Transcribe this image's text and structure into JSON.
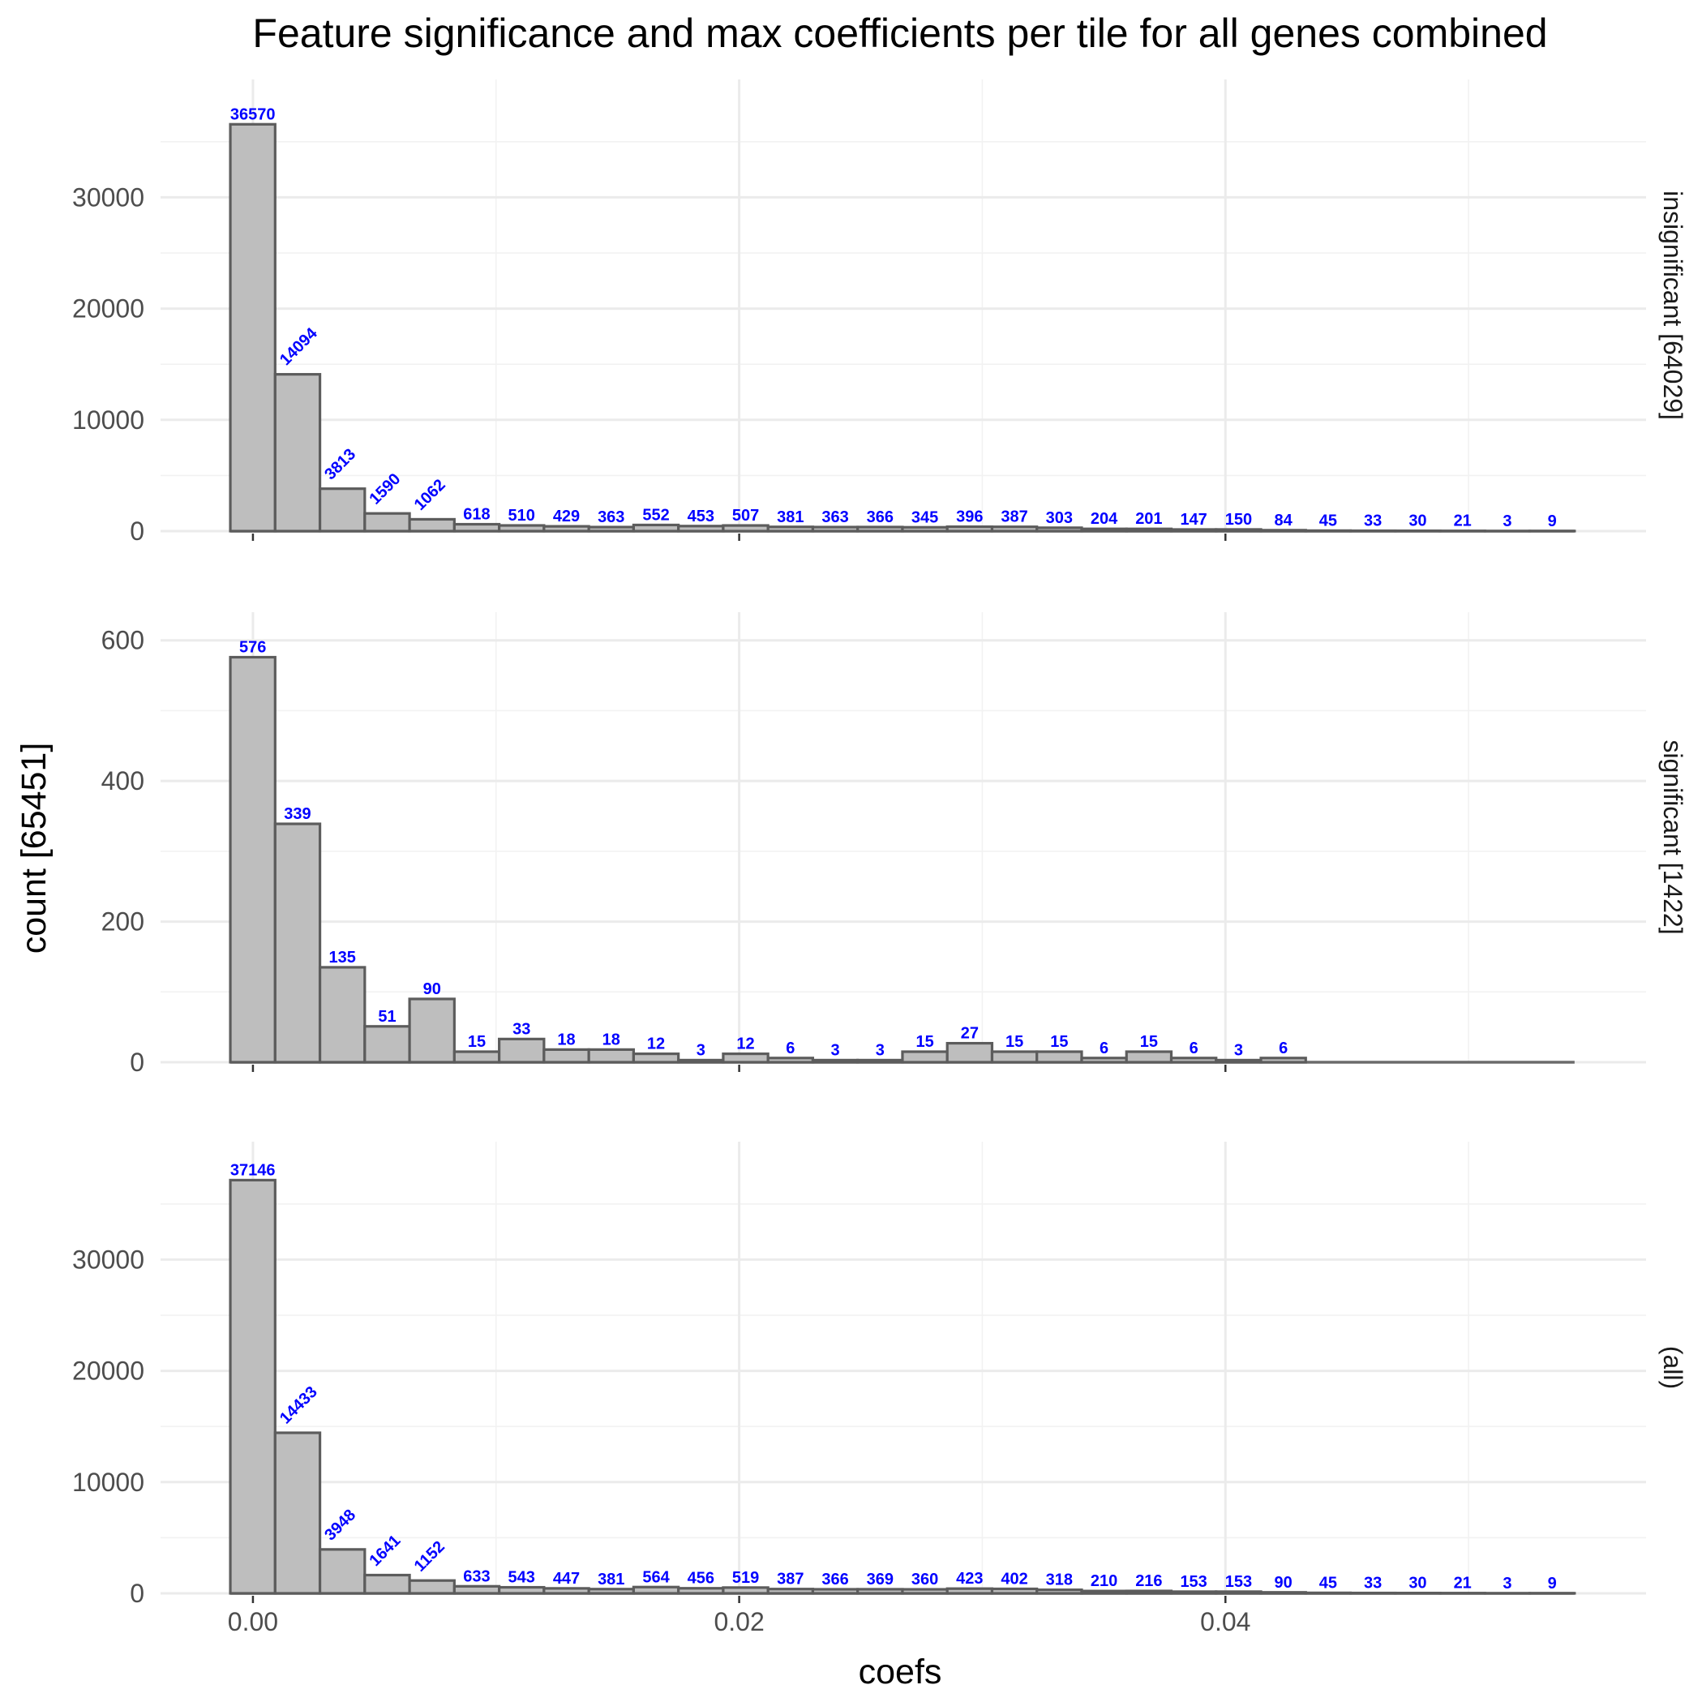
{
  "chart_data": {
    "type": "bar",
    "title": "Feature significance and max coefficients per tile for all genes combined",
    "xlabel": "coefs",
    "ylabel": "count [65451]",
    "xlim": [
      -0.0038,
      0.0573
    ],
    "x_ticks": [
      0.0,
      0.02,
      0.04
    ],
    "x_tick_labels": [
      "0.00",
      "0.02",
      "0.04"
    ],
    "bin_start": -0.00093,
    "bin_width": 0.001843,
    "grid": true,
    "label_color": "#0000ff",
    "bar_fill": "#bebebe",
    "bar_outline": "#5c5c5c",
    "panels": [
      {
        "strip_label": "insignificant [64029]",
        "ylim": [
          0,
          40600
        ],
        "y_ticks": [
          0,
          10000,
          20000,
          30000
        ],
        "y_tick_labels": [
          "0",
          "10000",
          "20000",
          "30000"
        ],
        "values": [
          36570,
          14094,
          3813,
          1590,
          1062,
          618,
          510,
          429,
          363,
          552,
          453,
          507,
          381,
          363,
          366,
          345,
          396,
          387,
          303,
          204,
          201,
          147,
          150,
          84,
          45,
          33,
          30,
          21,
          3,
          9
        ],
        "labels": [
          "36570",
          "14094",
          "3813",
          "1590",
          "1062",
          "618",
          "510",
          "429",
          "363",
          "552",
          "453",
          "507",
          "381",
          "363",
          "366",
          "345",
          "396",
          "387",
          "303",
          "204",
          "201",
          "147",
          "150",
          "84",
          "45",
          "33",
          "30",
          "21",
          "3",
          "9"
        ]
      },
      {
        "strip_label": "significant [1422]",
        "ylim": [
          0,
          640
        ],
        "y_ticks": [
          0,
          200,
          400,
          600
        ],
        "y_tick_labels": [
          "0",
          "200",
          "400",
          "600"
        ],
        "values": [
          576,
          339,
          135,
          51,
          90,
          15,
          33,
          18,
          18,
          12,
          3,
          12,
          6,
          3,
          3,
          15,
          27,
          15,
          15,
          6,
          15,
          6,
          3,
          6,
          0,
          0,
          0,
          0,
          0,
          0
        ],
        "labels": [
          "576",
          "339",
          "135",
          "51",
          "90",
          "15",
          "33",
          "18",
          "18",
          "12",
          "3",
          "12",
          "6",
          "3",
          "3",
          "15",
          "27",
          "15",
          "15",
          "6",
          "15",
          "6",
          "3",
          "6",
          "",
          "",
          "",
          "",
          "",
          ""
        ]
      },
      {
        "strip_label": "(all)",
        "ylim": [
          0,
          40600
        ],
        "y_ticks": [
          0,
          10000,
          20000,
          30000
        ],
        "y_tick_labels": [
          "0",
          "10000",
          "20000",
          "30000"
        ],
        "values": [
          37146,
          14433,
          3948,
          1641,
          1152,
          633,
          543,
          447,
          381,
          564,
          456,
          519,
          387,
          366,
          369,
          360,
          423,
          402,
          318,
          210,
          216,
          153,
          153,
          90,
          45,
          33,
          30,
          21,
          3,
          9
        ],
        "labels": [
          "37146",
          "14433",
          "3948",
          "1641",
          "1152",
          "633",
          "543",
          "447",
          "381",
          "564",
          "456",
          "519",
          "387",
          "366",
          "369",
          "360",
          "423",
          "402",
          "318",
          "210",
          "216",
          "153",
          "153",
          "90",
          "45",
          "33",
          "30",
          "21",
          "3",
          "9"
        ]
      }
    ]
  }
}
